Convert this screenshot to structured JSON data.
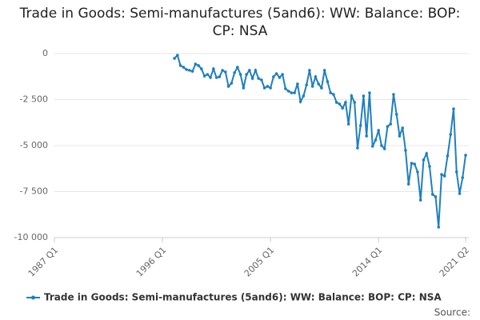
{
  "chart_data": {
    "type": "line",
    "title": "Trade in Goods: Semi-manufactures (5and6): WW: Balance: BOP: CP: NSA",
    "source": "Source:",
    "categories": [
      "1987 Q1",
      null,
      null,
      null,
      null,
      null,
      null,
      null,
      null,
      null,
      null,
      null,
      null,
      null,
      null,
      null,
      null,
      null,
      null,
      null,
      null,
      null,
      null,
      null,
      null,
      null,
      null,
      null,
      null,
      null,
      null,
      null,
      null,
      null,
      null,
      null,
      "1996 Q1",
      null,
      null,
      null,
      null,
      null,
      null,
      null,
      null,
      null,
      null,
      null,
      null,
      null,
      null,
      null,
      null,
      null,
      null,
      null,
      null,
      null,
      null,
      null,
      null,
      null,
      null,
      null,
      null,
      null,
      null,
      null,
      null,
      null,
      null,
      null,
      "2005 Q1",
      null,
      null,
      null,
      null,
      null,
      null,
      null,
      null,
      null,
      null,
      null,
      null,
      null,
      null,
      null,
      null,
      null,
      null,
      null,
      null,
      null,
      null,
      null,
      null,
      null,
      null,
      null,
      null,
      null,
      null,
      null,
      null,
      null,
      null,
      null,
      "2014 Q1",
      null,
      null,
      null,
      null,
      null,
      null,
      null,
      null,
      null,
      null,
      null,
      null,
      null,
      null,
      null,
      null,
      null,
      null,
      null,
      null,
      null,
      null,
      null,
      null,
      null,
      null,
      null,
      null,
      "2021 Q2"
    ],
    "series": [
      {
        "name": "Trade in Goods: Semi-manufactures (5and6): WW: Balance: BOP: CP: NSA",
        "color": "#1f7fc0",
        "values": [
          null,
          null,
          null,
          null,
          null,
          null,
          null,
          null,
          null,
          null,
          null,
          null,
          null,
          null,
          null,
          null,
          null,
          null,
          null,
          null,
          null,
          null,
          null,
          null,
          null,
          null,
          null,
          null,
          null,
          null,
          null,
          null,
          null,
          null,
          null,
          null,
          null,
          null,
          null,
          null,
          -260,
          -90,
          -650,
          -740,
          -870,
          -910,
          -960,
          -570,
          -650,
          -830,
          -1220,
          -1130,
          -1300,
          -830,
          -1300,
          -1260,
          -910,
          -1000,
          -1780,
          -1610,
          -1040,
          -740,
          -1130,
          -1870,
          -1130,
          -910,
          -1350,
          -910,
          -1350,
          -1430,
          -1870,
          -1780,
          -1870,
          -1260,
          -1090,
          -1300,
          -1130,
          -1910,
          -2040,
          -2130,
          -2130,
          -1650,
          -2610,
          -2300,
          -1700,
          -910,
          -1780,
          -1260,
          -1650,
          -1870,
          -910,
          -1520,
          -2130,
          -2220,
          -2650,
          -2740,
          -2960,
          -2650,
          -3830,
          -2300,
          -2650,
          -5130,
          -3910,
          -2300,
          -4480,
          -2130,
          -5040,
          -4700,
          -4170,
          -5000,
          -5170,
          -3960,
          -3830,
          -2220,
          -3300,
          -4480,
          -4040,
          -5260,
          -7090,
          -5960,
          -6000,
          -6430,
          -7960,
          -5780,
          -5430,
          -6130,
          -7650,
          -7780,
          -9430,
          -6570,
          -6650,
          -5560,
          -4390,
          -3000,
          -6430,
          -7610,
          -6740,
          -5520
        ]
      }
    ],
    "ylim": [
      -10000,
      0
    ],
    "yticks": [
      {
        "value": -10000,
        "label": "-10 000"
      },
      {
        "value": -7500,
        "label": "-7 500"
      },
      {
        "value": -5000,
        "label": "-5 000"
      },
      {
        "value": -2500,
        "label": "-2 500"
      },
      0
    ],
    "grid": true
  }
}
